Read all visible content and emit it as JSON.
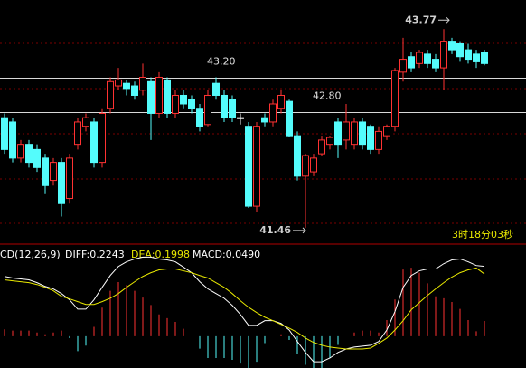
{
  "chart_data": {
    "type": "candlestick",
    "ylim": [
      41.29,
      44.11
    ],
    "up_color": "#ff3232",
    "down_color": "#54fcfc",
    "flat_color": "#ffffff",
    "open": [
      42.74,
      42.69,
      42.27,
      42.43,
      42.37,
      42.27,
      42.01,
      42.22,
      41.8,
      42.43,
      42.64,
      42.69,
      42.22,
      42.85,
      43.11,
      43.14,
      43.11,
      43.06,
      43.16,
      42.79,
      43.18,
      42.79,
      43.0,
      42.95,
      42.85,
      42.66,
      43.14,
      43.0,
      42.95,
      42.74,
      42.64,
      41.71,
      42.74,
      42.69,
      42.85,
      42.93,
      42.53,
      42.06,
      42.11,
      42.32,
      42.43,
      42.69,
      42.48,
      42.43,
      42.69,
      42.64,
      42.37,
      42.53,
      42.64,
      43.27,
      43.45,
      43.37,
      43.48,
      43.42,
      43.32,
      43.63,
      43.6,
      43.53,
      43.48,
      43.5
    ],
    "high": [
      42.79,
      42.74,
      42.48,
      42.48,
      42.43,
      42.32,
      42.27,
      42.27,
      42.32,
      42.74,
      42.79,
      42.74,
      42.85,
      43.21,
      43.32,
      43.18,
      43.16,
      43.37,
      43.21,
      43.27,
      43.21,
      43.06,
      43.06,
      43.0,
      42.9,
      43.06,
      43.21,
      43.06,
      43.0,
      42.79,
      42.69,
      42.69,
      42.79,
      42.95,
      43.06,
      42.95,
      42.58,
      42.32,
      42.32,
      42.53,
      42.53,
      42.74,
      42.9,
      42.74,
      42.74,
      42.66,
      42.64,
      42.66,
      43.32,
      43.67,
      43.5,
      43.53,
      43.53,
      43.48,
      43.77,
      43.67,
      43.63,
      43.6,
      43.53,
      43.53
    ],
    "low": [
      42.32,
      42.22,
      42.22,
      42.16,
      42.11,
      41.85,
      41.95,
      41.59,
      41.74,
      42.37,
      42.58,
      42.16,
      42.16,
      42.79,
      43.06,
      43.0,
      42.95,
      43.0,
      42.48,
      42.74,
      42.74,
      42.74,
      42.85,
      42.79,
      42.58,
      42.64,
      42.95,
      42.69,
      42.69,
      42.66,
      41.69,
      41.64,
      42.64,
      42.64,
      42.79,
      42.51,
      42.01,
      41.46,
      42.06,
      42.3,
      42.37,
      42.27,
      42.37,
      42.37,
      42.37,
      42.32,
      42.32,
      42.48,
      42.58,
      43.16,
      43.27,
      43.32,
      43.32,
      43.27,
      43.06,
      43.48,
      43.39,
      43.37,
      43.32,
      43.35
    ],
    "close": [
      42.37,
      42.27,
      42.43,
      42.22,
      42.16,
      41.95,
      42.22,
      41.74,
      42.27,
      42.69,
      42.74,
      42.22,
      42.79,
      43.16,
      43.18,
      43.08,
      43.0,
      43.21,
      42.79,
      43.21,
      42.79,
      43.0,
      42.9,
      42.85,
      42.64,
      43.0,
      43.0,
      42.74,
      42.74,
      42.74,
      41.71,
      42.64,
      42.69,
      42.9,
      43.0,
      42.53,
      42.06,
      42.3,
      42.27,
      42.48,
      42.51,
      42.43,
      42.69,
      42.69,
      42.43,
      42.37,
      42.58,
      42.64,
      43.29,
      43.42,
      43.32,
      43.5,
      43.37,
      43.32,
      43.63,
      43.53,
      43.45,
      43.42,
      43.39,
      43.37
    ],
    "ref_lines": [
      {
        "value": 43.2,
        "label": "43.20"
      },
      {
        "value": 42.8,
        "label": "42.80"
      }
    ],
    "max_label": "43.77",
    "min_label": "41.46",
    "timer": "3时18分03秒",
    "macd": {
      "title": "CD(12,26,9)",
      "diff_label": "DIFF:0.2243",
      "dea_label": "DEA:0.1998",
      "macd_label": "MACD:0.0490",
      "ylim": [
        -0.102,
        0.29
      ],
      "diff_color": "#ffffff",
      "dea_color": "#e8e800",
      "diff": [
        0.192,
        0.187,
        0.184,
        0.181,
        0.172,
        0.16,
        0.152,
        0.137,
        0.117,
        0.087,
        0.087,
        0.117,
        0.157,
        0.195,
        0.224,
        0.239,
        0.248,
        0.254,
        0.254,
        0.248,
        0.245,
        0.239,
        0.222,
        0.204,
        0.175,
        0.152,
        0.137,
        0.122,
        0.099,
        0.07,
        0.035,
        0.035,
        0.05,
        0.05,
        0.041,
        0.02,
        -0.017,
        -0.052,
        -0.082,
        -0.082,
        -0.07,
        -0.052,
        -0.041,
        -0.035,
        -0.032,
        -0.029,
        -0.017,
        0.02,
        0.079,
        0.157,
        0.195,
        0.21,
        0.216,
        0.216,
        0.233,
        0.245,
        0.248,
        0.239,
        0.227,
        0.2243
      ],
      "dea": [
        0.181,
        0.178,
        0.175,
        0.172,
        0.166,
        0.157,
        0.146,
        0.128,
        0.12,
        0.111,
        0.102,
        0.102,
        0.111,
        0.122,
        0.137,
        0.157,
        0.175,
        0.192,
        0.204,
        0.213,
        0.216,
        0.216,
        0.21,
        0.204,
        0.195,
        0.187,
        0.172,
        0.157,
        0.137,
        0.114,
        0.093,
        0.076,
        0.061,
        0.05,
        0.038,
        0.026,
        0.012,
        -0.006,
        -0.02,
        -0.029,
        -0.035,
        -0.038,
        -0.041,
        -0.041,
        -0.041,
        -0.038,
        -0.023,
        -0.006,
        0.02,
        0.05,
        0.085,
        0.108,
        0.131,
        0.152,
        0.172,
        0.19,
        0.204,
        0.213,
        0.219,
        0.1998
      ],
      "hist": [
        0.022,
        0.018,
        0.018,
        0.018,
        0.012,
        0.006,
        0.012,
        0.018,
        -0.006,
        -0.048,
        -0.03,
        0.03,
        0.092,
        0.146,
        0.174,
        0.164,
        0.146,
        0.124,
        0.1,
        0.07,
        0.058,
        0.046,
        0.024,
        0,
        -0.04,
        -0.07,
        -0.07,
        -0.07,
        -0.076,
        -0.088,
        -0.116,
        -0.082,
        -0.022,
        0,
        0.006,
        -0.012,
        -0.058,
        -0.092,
        -0.124,
        -0.106,
        -0.07,
        -0.028,
        0,
        0.012,
        0.018,
        0.018,
        0.012,
        0.052,
        0.118,
        0.214,
        0.22,
        0.204,
        0.17,
        0.128,
        0.122,
        0.11,
        0.088,
        0.052,
        0.016,
        0.049
      ]
    }
  }
}
